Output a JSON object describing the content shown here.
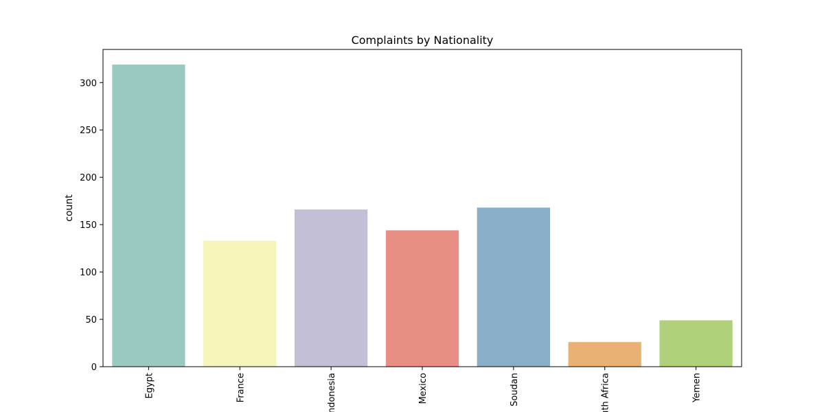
{
  "chart_data": {
    "type": "bar",
    "title": "Complaints by Nationality",
    "xlabel": "",
    "ylabel": "count",
    "categories": [
      "Egypt",
      "France",
      "Indonesia",
      "Mexico",
      "Soudan",
      "South Africa",
      "Yemen"
    ],
    "values": [
      319,
      133,
      166,
      144,
      168,
      26,
      49
    ],
    "colors": [
      "#99c9c0",
      "#f6f6bb",
      "#c3bfd6",
      "#e98e84",
      "#8aaec8",
      "#e9b274",
      "#b0d07a"
    ],
    "ylim": [
      0,
      335
    ],
    "yticks": [
      0,
      50,
      100,
      150,
      200,
      250,
      300
    ],
    "grid": false,
    "legend": "none"
  }
}
